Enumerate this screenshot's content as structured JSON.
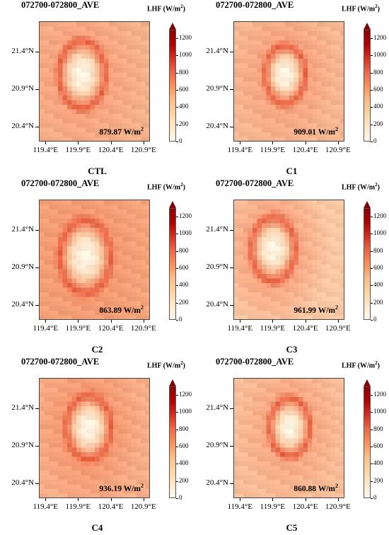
{
  "chart_data": [
    {
      "type": "heatmap",
      "title": "072700-072800_AVE",
      "colorbar_label": "LHF (W/m",
      "colorbar_sup": "2",
      "colorbar_close": ")",
      "mean_text": "879.87 W/m",
      "mean_sup": "2",
      "case": "CTL",
      "center": [
        119.95,
        21.1
      ],
      "radius": 0.23,
      "ring": 0.95,
      "bg": "#f7a47e",
      "edge": "#f4b089"
    },
    {
      "type": "heatmap",
      "title": "072700-072800_AVE",
      "colorbar_label": "LHF (W/m",
      "colorbar_sup": "2",
      "colorbar_close": ")",
      "mean_text": "909.01 W/m",
      "mean_sup": "2",
      "case": "C1",
      "center": [
        120.08,
        21.1
      ],
      "radius": 0.2,
      "ring": 0.9,
      "bg": "#f6a47e",
      "edge": "#f6b692"
    },
    {
      "type": "heatmap",
      "title": "072700-072800_AVE",
      "colorbar_label": "LHF (W/m",
      "colorbar_sup": "2",
      "colorbar_close": ")",
      "mean_text": "863.89 W/m",
      "mean_sup": "2",
      "case": "C2",
      "center": [
        120.0,
        21.05
      ],
      "radius": 0.25,
      "ring": 0.9,
      "bg": "#f49a73",
      "edge": "#f4a47b"
    },
    {
      "type": "heatmap",
      "title": "072700-072800_AVE",
      "colorbar_label": "LHF (W/m",
      "colorbar_sup": "2",
      "colorbar_close": ")",
      "mean_text": "961.99 W/m",
      "mean_sup": "2",
      "case": "C3",
      "center": [
        119.9,
        21.15
      ],
      "radius": 0.22,
      "ring": 1.0,
      "bg": "#f8a884",
      "edge": "#fbc8a4"
    },
    {
      "type": "heatmap",
      "title": "072700-072800_AVE",
      "colorbar_label": "LHF (W/m",
      "colorbar_sup": "2",
      "colorbar_close": ")",
      "mean_text": "936.19 W/m",
      "mean_sup": "2",
      "case": "C4",
      "center": [
        120.05,
        21.15
      ],
      "radius": 0.22,
      "ring": 1.05,
      "bg": "#f59a72",
      "edge": "#f6ae88"
    },
    {
      "type": "heatmap",
      "title": "072700-072800_AVE",
      "colorbar_label": "LHF (W/m",
      "colorbar_sup": "2",
      "colorbar_close": ")",
      "mean_text": "860.88 W/m",
      "mean_sup": "2",
      "case": "C5",
      "center": [
        120.15,
        21.15
      ],
      "radius": 0.2,
      "ring": 0.9,
      "bg": "#f7a983",
      "edge": "#f8bc98"
    }
  ],
  "axes": {
    "y_ticks": [
      "21.4°N",
      "20.9°N",
      "20.4°N"
    ],
    "y_values": [
      21.4,
      20.9,
      20.4
    ],
    "x_ticks": [
      "119.4°E",
      "119.9°E",
      "120.4°E",
      "120.9°E"
    ],
    "x_values": [
      119.4,
      119.9,
      120.4,
      120.9
    ],
    "xlim": [
      119.3,
      121.0
    ],
    "ylim": [
      20.2,
      21.8
    ]
  },
  "colorbar": {
    "ticks": [
      "1200",
      "1000",
      "800",
      "600",
      "400",
      "200",
      "0"
    ],
    "values": [
      1200,
      1000,
      800,
      600,
      400,
      200,
      0
    ],
    "range": [
      0,
      1300
    ],
    "extend": "max",
    "colormap": "OrRd"
  }
}
